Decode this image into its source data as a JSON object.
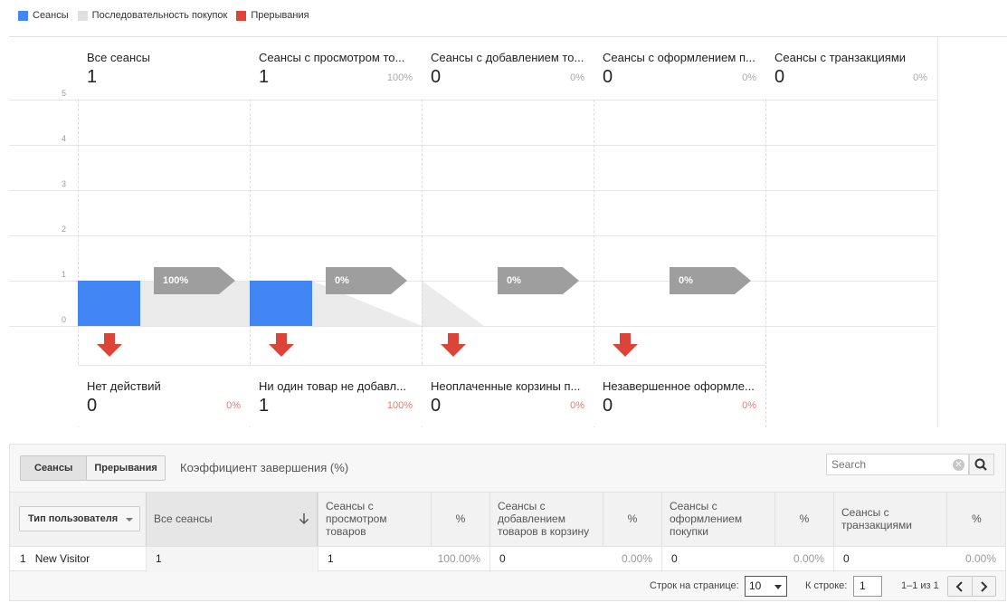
{
  "legend": [
    {
      "label": "Сеансы",
      "color": "#4285f4"
    },
    {
      "label": "Последовательность покупок",
      "color": "#e0e0e0"
    },
    {
      "label": "Прерывания",
      "color": "#db4437"
    }
  ],
  "colors": {
    "bar": "#4285f4",
    "flow": "#ebebeb",
    "chip": "#9e9e9e",
    "drop": "#db4437"
  },
  "chart_data": {
    "type": "bar",
    "categories": [
      "Все сеансы",
      "Сеансы с просмотром то...",
      "Сеансы с добавлением то...",
      "Сеансы с оформлением п...",
      "Сеансы с транзакциями"
    ],
    "values": [
      1,
      1,
      0,
      0,
      0
    ],
    "percents": [
      "",
      "100%",
      "0%",
      "0%",
      "0%"
    ],
    "continuation": [
      "100%",
      "0%",
      "0%",
      "0%"
    ],
    "abandonment": [
      {
        "label": "Нет действий",
        "value": 0,
        "pct": "0%"
      },
      {
        "label": "Ни один товар не добавл...",
        "value": 1,
        "pct": "100%"
      },
      {
        "label": "Неоплаченные корзины п...",
        "value": 0,
        "pct": "0%"
      },
      {
        "label": "Незавершенное оформле...",
        "value": 0,
        "pct": "0%"
      }
    ],
    "yticks": [
      "0",
      "1",
      "2",
      "3",
      "4",
      "5"
    ],
    "ylim": [
      0,
      5
    ],
    "grid": true
  },
  "table": {
    "tabs": [
      "Сеансы",
      "Прерывания"
    ],
    "completion_label": "Коэффициент завершения (%)",
    "search_placeholder": "Search",
    "dimension": "Тип пользователя",
    "columns": {
      "all": "Все сеансы",
      "view": "Сеансы с просмотром товаров",
      "add": "Сеансы с добавлением товаров в корзину",
      "checkout": "Сеансы с оформлением покупки",
      "tx": "Сеансы с транзакциями",
      "pct": "%"
    },
    "row": {
      "index": "1",
      "name": "New Visitor",
      "all": "1",
      "view": "1",
      "view_pct": "100.00%",
      "add": "0",
      "add_pct": "0.00%",
      "checkout": "0",
      "checkout_pct": "0.00%",
      "tx": "0",
      "tx_pct": "0.00%"
    },
    "pager": {
      "rows_label": "Строк на странице:",
      "rows_value": "10",
      "goto_label": "К строке:",
      "goto_value": "1",
      "range": "1–1 из 1"
    }
  }
}
